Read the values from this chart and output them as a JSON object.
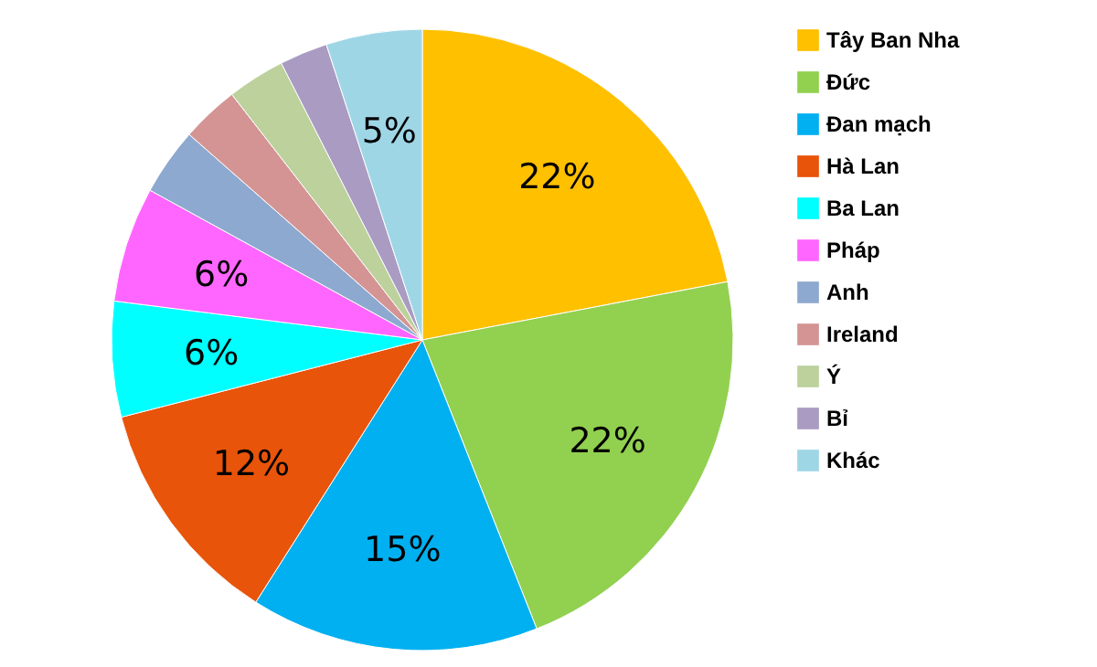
{
  "chart_data": {
    "type": "pie",
    "categories": [
      "Tây Ban Nha",
      "Đức",
      "Đan mạch",
      "Hà Lan",
      "Ba Lan",
      "Pháp",
      "Anh",
      "Ireland",
      "Ý",
      "Bỉ",
      "Khác"
    ],
    "values": [
      22,
      22,
      15,
      12,
      6,
      6,
      3.5,
      3,
      3,
      2.5,
      5
    ],
    "value_labels": [
      "22%",
      "22%",
      "15%",
      "12%",
      "6%",
      "6%",
      null,
      null,
      null,
      null,
      "5%"
    ],
    "colors": [
      "#ffc000",
      "#92d050",
      "#00b0f0",
      "#e8540a",
      "#00ffff",
      "#ff66ff",
      "#8ea9d0",
      "#d49494",
      "#bcd19c",
      "#a99bc2",
      "#9fd6e6"
    ],
    "legend": "right"
  }
}
